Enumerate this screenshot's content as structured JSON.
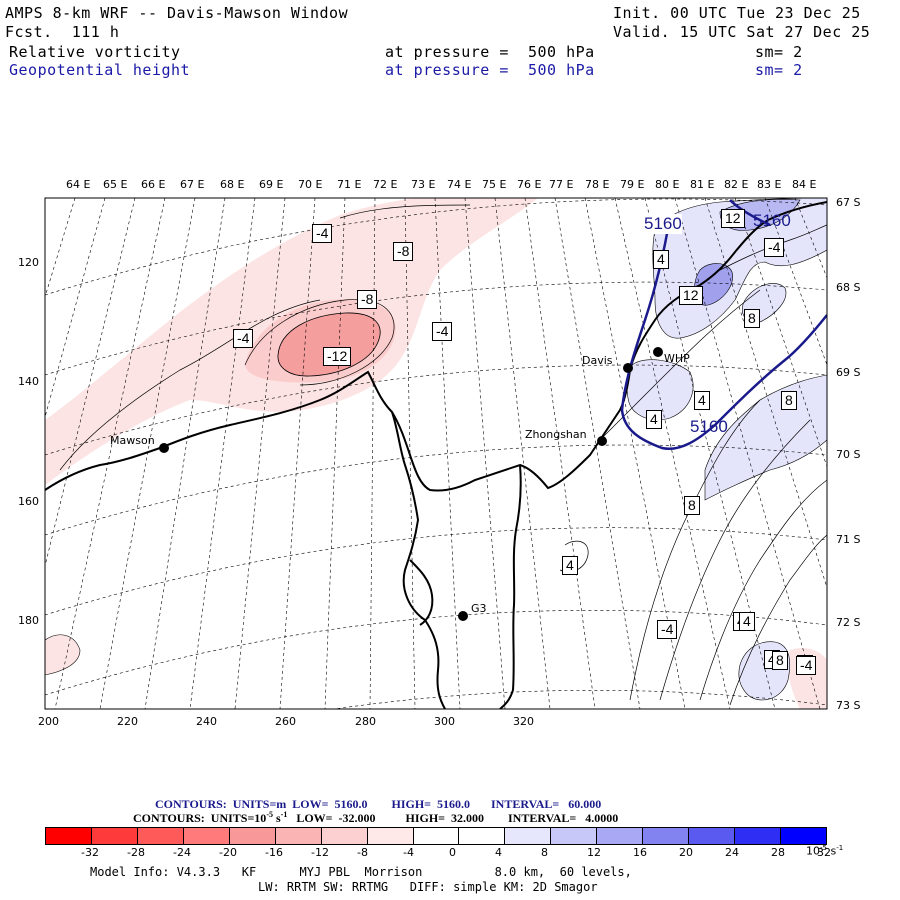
{
  "header": {
    "title": "AMPS 8-km WRF -- Davis-Mawson Window",
    "forecast": "Fcst.  111 h",
    "init": "Init. 00 UTC Tue 23 Dec 25",
    "valid": "Valid. 15 UTC Sat 27 Dec 25",
    "field1": {
      "name": "Relative vorticity",
      "level": "at pressure =  500 hPa",
      "smooth": "sm= 2"
    },
    "field2": {
      "name": "Geopotential height",
      "level": "at pressure =  500 hPa",
      "smooth": "sm= 2"
    }
  },
  "map": {
    "top_axis_labels": [
      "64 E",
      "65 E",
      "66 E",
      "67 E",
      "68 E",
      "69 E",
      "70 E",
      "71 E",
      "72 E",
      "73 E",
      "74 E",
      "75 E",
      "76 E",
      "77 E",
      "78 E",
      "79 E",
      "80 E",
      "81 E",
      "82 E",
      "83 E",
      "84 E"
    ],
    "right_axis_labels": [
      "67 S",
      "68 S",
      "69 S",
      "70 S",
      "71 S",
      "72 S",
      "73 S"
    ],
    "left_axis_labels": [
      "120",
      "140",
      "160",
      "180"
    ],
    "bottom_axis_labels": [
      "200",
      "220",
      "240",
      "260",
      "280",
      "300",
      "320"
    ],
    "stations": [
      {
        "name": "Mawson"
      },
      {
        "name": "Davis"
      },
      {
        "name": "WHP"
      },
      {
        "name": "Zhongshan"
      },
      {
        "name": "G3"
      }
    ],
    "vorticity_labels": [
      "-4",
      "-8",
      "-8",
      "-4",
      "-4",
      "-12",
      "-4",
      "4",
      "8",
      "12",
      "12",
      "8",
      "4",
      "4",
      "8",
      "4",
      "-4",
      "4",
      "4",
      "4",
      "4",
      "8",
      "-4"
    ],
    "height_labels": [
      "5160",
      "5160",
      "5160"
    ],
    "colors": {
      "negative": "#f4a3a3",
      "negative_strong": "#f08080",
      "positive": "#c8c8f4",
      "positive_strong": "#9090e8",
      "height_contour": "#1a1a8c"
    }
  },
  "footer": {
    "contours_height": "CONTOURS:  UNITS=m  LOW=  5160.0        HIGH=  5160.0       INTERVAL=   60.000",
    "contours_vort_prefix": "CONTOURS:  UNITS=10",
    "contours_vort_exp": "-5",
    "contours_vort_suffix": " s",
    "contours_vort_exp2": "-1",
    "contours_vort_rest": "   LOW=  -32.000          HIGH=  32.000        INTERVAL=   4.0000",
    "colorbar_labels": [
      "-32",
      "-28",
      "-24",
      "-20",
      "-16",
      "-12",
      "-8",
      "-4",
      "0",
      "4",
      "8",
      "12",
      "16",
      "20",
      "24",
      "28",
      "32"
    ],
    "colorbar_unit": "10",
    "colorbar_unit_exp": "-5",
    "colorbar_unit_s": " s",
    "colorbar_unit_exp2": "-1",
    "colorbar_colors": [
      "#ff0000",
      "#ff3a3a",
      "#ff5a5a",
      "#ff7a7a",
      "#f89898",
      "#fab4b4",
      "#fcd0d0",
      "#fee8e8",
      "#ffffff",
      "#ffffff",
      "#e6e6fc",
      "#c8c8f8",
      "#a8a8f4",
      "#8282f0",
      "#5a5af0",
      "#2e2ef4",
      "#0000ff"
    ],
    "model_info": "Model Info: V4.3.3   KF      MYJ PBL  Morrison          8.0 km,  60 levels,",
    "model_info2": "LW: RRTM SW: RRTMG   DIFF: simple KM: 2D Smagor"
  }
}
